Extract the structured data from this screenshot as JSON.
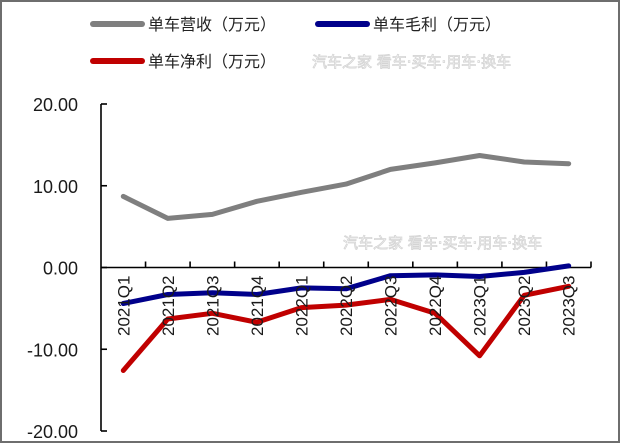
{
  "chart_data": {
    "type": "line",
    "title": "",
    "xlabel": "",
    "ylabel": "",
    "categories": [
      "2021Q1",
      "2021Q2",
      "2021Q3",
      "2021Q4",
      "2022Q1",
      "2022Q2",
      "2022Q3",
      "2022Q4",
      "2023Q1",
      "2023Q2",
      "2023Q3"
    ],
    "ylim": [
      -20,
      20
    ],
    "yticks": [
      20,
      10,
      0,
      -10,
      -20
    ],
    "ytick_labels": [
      "20.00",
      "10.00",
      "0.00",
      "-10.00",
      "-20.00"
    ],
    "grid": false,
    "legend_position": "top",
    "series": [
      {
        "name": "单车营收（万元）",
        "color": "#7f7f7f",
        "values": [
          8.7,
          6.0,
          6.5,
          8.1,
          9.2,
          10.2,
          12.0,
          12.8,
          13.7,
          12.9,
          12.7
        ]
      },
      {
        "name": "单车毛利（万元）",
        "color": "#00008b",
        "values": [
          -4.4,
          -3.3,
          -3.1,
          -3.3,
          -2.5,
          -2.6,
          -1.0,
          -0.9,
          -1.1,
          -0.6,
          0.2
        ]
      },
      {
        "name": "单车净利（万元）",
        "color": "#c00000",
        "values": [
          -12.6,
          -6.3,
          -5.6,
          -6.7,
          -4.9,
          -4.6,
          -3.9,
          -5.6,
          -10.8,
          -3.4,
          -2.3
        ]
      }
    ]
  },
  "legend": {
    "items": [
      {
        "label": "单车营收（万元）",
        "color": "#7f7f7f"
      },
      {
        "label": "单车毛利（万元）",
        "color": "#00008b"
      },
      {
        "label": "单车净利（万元）",
        "color": "#c00000"
      }
    ]
  },
  "watermark": {
    "text": "汽车之家 看车·买车·用车·换车"
  }
}
